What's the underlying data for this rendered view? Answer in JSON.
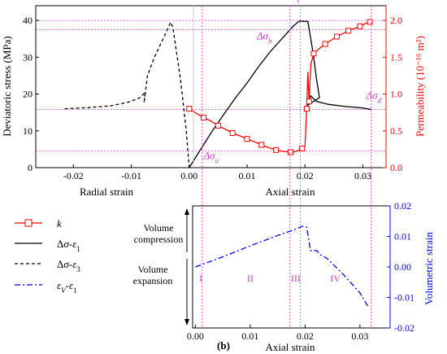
{
  "caption": "(b)",
  "colors": {
    "stress": "#000000",
    "permeability": "#ff0000",
    "volumetric": "#0000ff",
    "guide": "#ee55ee"
  },
  "chart_data": [
    {
      "type": "line",
      "ylabel_left": "Deviatoric stress (MPa)",
      "ylabel_right": "Permeability (10⁻¹⁶ m²)",
      "xlabel_left": "Radial strain",
      "xlabel_right": "Axial strain",
      "x_ticks": [
        "-0.02",
        "-0.01",
        "0.00",
        "0.01",
        "0.02",
        "0.03"
      ],
      "y_left_ticks": [
        "0",
        "10",
        "20",
        "30",
        "40"
      ],
      "y_right_ticks": [
        "0.0",
        "0.5",
        "1.0",
        "1.5",
        "2.0"
      ],
      "xlim": [
        -0.0265,
        0.034
      ],
      "ylim_left": [
        0,
        44
      ],
      "ylim_right": [
        0,
        2.2
      ],
      "guide_lines": {
        "x": [
          0.0022,
          0.0174,
          0.0192,
          0.0314
        ],
        "y_stress": [
          4.5,
          15.8,
          37.5,
          40
        ]
      },
      "annotations": [
        {
          "text": "Δσa",
          "x": 0.0022,
          "y": 1.0
        },
        {
          "text": "Δσb",
          "x": 0.017,
          "y": 37.5
        },
        {
          "text": "Δσc",
          "x": 0.0192,
          "y": 41.0
        },
        {
          "text": "Δσd",
          "x": 0.0314,
          "y": 16.5
        }
      ],
      "series": [
        {
          "legend": "Δσ-ε1",
          "axis": "left",
          "style": "solid",
          "x": [
            0.0,
            0.002,
            0.004,
            0.006,
            0.008,
            0.01,
            0.012,
            0.014,
            0.016,
            0.018,
            0.019,
            0.0205,
            0.021,
            0.0215,
            0.022,
            0.0225,
            0.0205,
            0.021,
            0.022,
            0.024,
            0.027,
            0.03,
            0.0314
          ],
          "y": [
            0.0,
            5.0,
            10.0,
            14.5,
            19.0,
            23.0,
            27.5,
            31.5,
            35.0,
            38.5,
            39.8,
            39.7,
            35.0,
            30.0,
            24.0,
            19.0,
            17.0,
            19.5,
            18.0,
            17.2,
            16.6,
            16.2,
            15.8
          ]
        },
        {
          "legend": "Δσ-ε3",
          "axis": "left",
          "style": "dashed",
          "x": [
            -0.0215,
            -0.0175,
            -0.0135,
            -0.0105,
            -0.0085,
            -0.0076,
            -0.0078,
            -0.0072,
            -0.006,
            -0.0045,
            -0.0032,
            -0.0028,
            -0.0015,
            -0.0005,
            0.0
          ],
          "y": [
            16.0,
            16.3,
            16.8,
            17.8,
            19.0,
            20.5,
            17.6,
            25.0,
            30.0,
            35.0,
            39.5,
            38.0,
            24.0,
            10.0,
            0.0
          ]
        },
        {
          "legend": "k",
          "axis": "right",
          "style": "solid-markers",
          "x": [
            0.0,
            0.0012,
            0.0025,
            0.0038,
            0.005,
            0.0063,
            0.0075,
            0.0088,
            0.01,
            0.0113,
            0.0125,
            0.0138,
            0.015,
            0.0163,
            0.0175,
            0.0185,
            0.0195,
            0.02,
            0.0203,
            0.0205,
            0.0207,
            0.021,
            0.0215,
            0.0225,
            0.0235,
            0.0245,
            0.0255,
            0.0265,
            0.0275,
            0.0285,
            0.0295,
            0.0305,
            0.0312
          ],
          "y": [
            0.8,
            0.74,
            0.68,
            0.63,
            0.57,
            0.52,
            0.47,
            0.43,
            0.39,
            0.35,
            0.31,
            0.27,
            0.24,
            0.22,
            0.21,
            0.22,
            0.26,
            0.3,
            0.8,
            1.3,
            0.9,
            1.4,
            1.55,
            1.62,
            1.68,
            1.73,
            1.78,
            1.82,
            1.86,
            1.89,
            1.92,
            1.96,
            1.98
          ]
        }
      ]
    },
    {
      "type": "line",
      "xlabel": "Axial strain",
      "ylabel_right": "Volumetric strain",
      "x_ticks": [
        "0.00",
        "0.01",
        "0.02",
        "0.03"
      ],
      "y_right_ticks": [
        "0.02",
        "0.01",
        "0.00",
        "-0.01",
        "-0.02"
      ],
      "xlim": [
        -0.0005,
        0.0355
      ],
      "ylim": [
        -0.02,
        0.02
      ],
      "regions": [
        "I",
        "II",
        "III",
        "IV"
      ],
      "region_x": [
        0.001,
        0.01,
        0.0183,
        0.0255
      ],
      "side_labels": {
        "compression": [
          "Volume",
          "compression"
        ],
        "expansion": [
          "Volume",
          "expansion"
        ]
      },
      "series": [
        {
          "legend": "εV-ε1",
          "axis": "right",
          "style": "dashdot",
          "x": [
            0.0,
            0.005,
            0.01,
            0.015,
            0.018,
            0.0195,
            0.0203,
            0.021,
            0.0212,
            0.0222,
            0.0226,
            0.024,
            0.027,
            0.03,
            0.0314
          ],
          "y": [
            0.0,
            0.0033,
            0.0069,
            0.0103,
            0.0122,
            0.0133,
            0.013,
            0.0053,
            0.0055,
            0.0053,
            0.0042,
            0.0028,
            -0.0025,
            -0.0085,
            -0.0128
          ]
        }
      ]
    }
  ]
}
